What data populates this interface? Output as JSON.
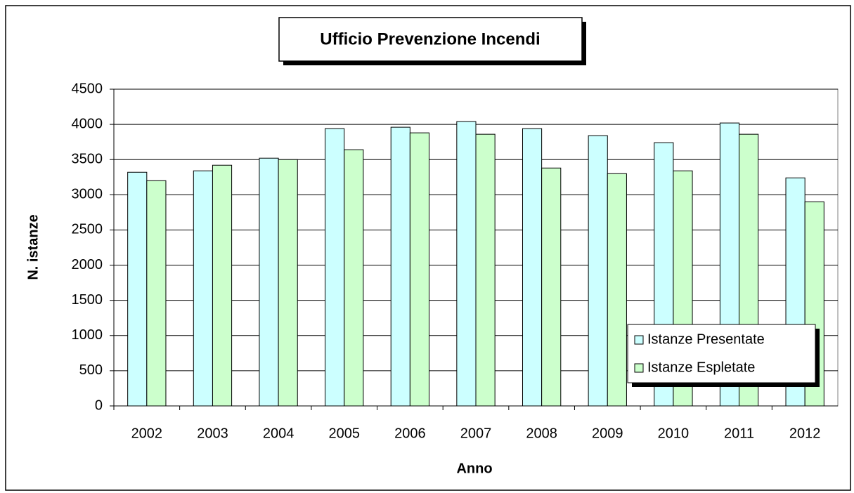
{
  "chart_data": {
    "type": "bar",
    "title": "Ufficio Prevenzione Incendi",
    "x_label": "Anno",
    "y_label": "N. istanze",
    "categories": [
      "2002",
      "2003",
      "2004",
      "2005",
      "2006",
      "2007",
      "2008",
      "2009",
      "2010",
      "2011",
      "2012"
    ],
    "series": [
      {
        "name": "Istanze Presentate",
        "color": "#ccffff",
        "values": [
          3320,
          3340,
          3520,
          3940,
          3960,
          4040,
          3940,
          3840,
          3740,
          4020,
          3240
        ]
      },
      {
        "name": "Istanze Espletate",
        "color": "#ccffcc",
        "values": [
          3200,
          3420,
          3500,
          3640,
          3880,
          3860,
          3380,
          3300,
          3340,
          3860,
          2900
        ]
      }
    ],
    "ylim": [
      0,
      4500
    ],
    "yticks": [
      0,
      500,
      1000,
      1500,
      2000,
      2500,
      3000,
      3500,
      4000,
      4500
    ],
    "grid": true,
    "legend": "lower right"
  }
}
